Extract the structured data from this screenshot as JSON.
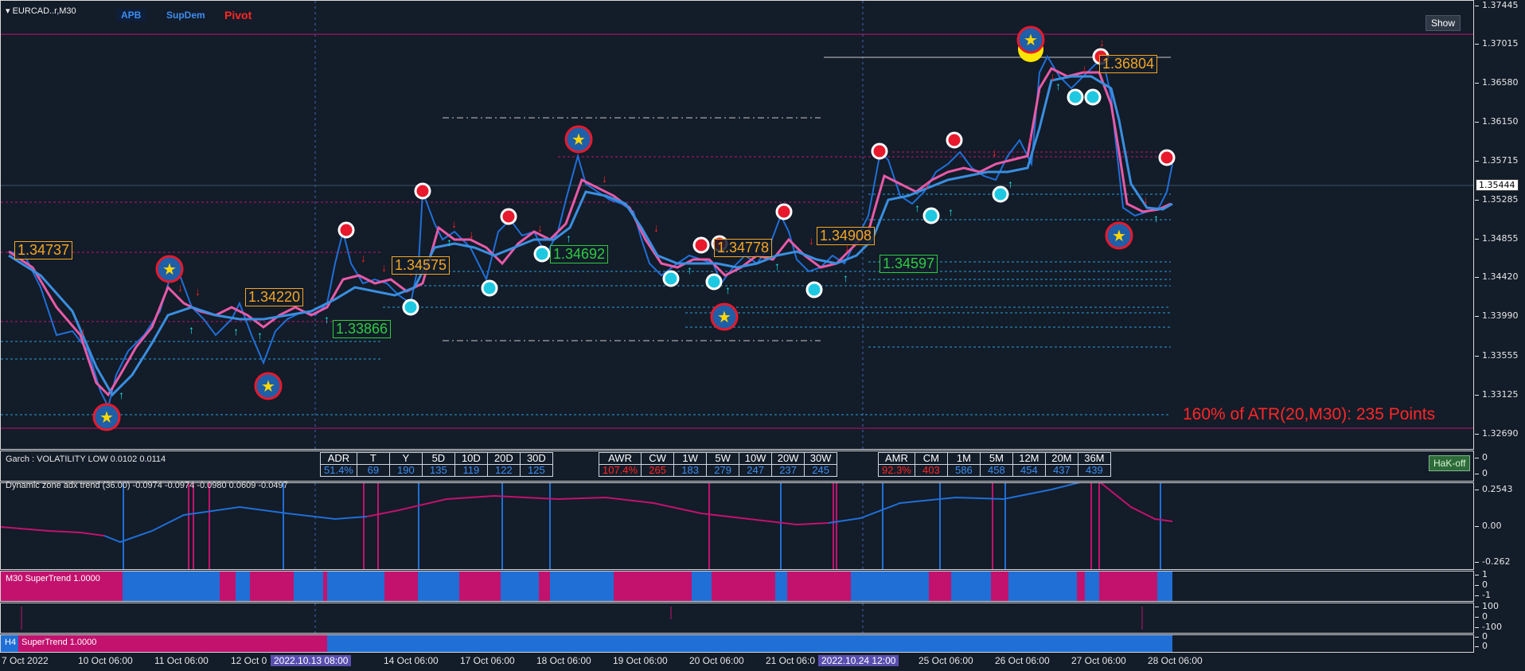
{
  "window": {
    "title": "EURCAD..r,M30"
  },
  "toolbar": {
    "apb": "APB",
    "supdem": "SupDem",
    "pivot": "Pivot",
    "show": "Show"
  },
  "main_axis": [
    "1.37445",
    "1.37015",
    "1.36580",
    "1.36150",
    "1.35715",
    "1.35285",
    "1.34855",
    "1.34420",
    "1.33990",
    "1.33555",
    "1.33125",
    "1.32690"
  ],
  "current_price": "1.35444",
  "price_labels": {
    "l1": "1.34737",
    "l2": "1.34220",
    "l3": "1.34575",
    "l4": "1.33866",
    "l5": "1.34692",
    "l6": "1.34778",
    "l7": "1.34908",
    "l8": "1.34597",
    "l9": "1.36804"
  },
  "atr_text": "160% of ATR(20,M30): 235  Points",
  "garch": {
    "title": "Garch : VOLATILITY LOW 0.0102 0.0114",
    "hak_button": "HaK-off",
    "axis": [
      "0",
      "0"
    ],
    "t1": {
      "headers": [
        "ADR",
        "T",
        "Y",
        "5D",
        "10D",
        "20D",
        "30D"
      ],
      "values": [
        "51.4%",
        "69",
        "190",
        "135",
        "119",
        "122",
        "125"
      ]
    },
    "t2": {
      "headers": [
        "AWR",
        "CW",
        "1W",
        "5W",
        "10W",
        "20W",
        "30W"
      ],
      "values": [
        "107.4%",
        "265",
        "183",
        "279",
        "247",
        "237",
        "245"
      ]
    },
    "t3": {
      "headers": [
        "AMR",
        "CM",
        "1M",
        "5M",
        "12M",
        "20M",
        "36M"
      ],
      "values": [
        "92.3%",
        "403",
        "586",
        "458",
        "454",
        "437",
        "439"
      ]
    }
  },
  "adx": {
    "title": "Dynamic zone adx trend (36.00) -0.0974 -0.0974 -0.0980 0.0609 -0.0497",
    "axis": [
      "0.2543",
      "0.00",
      "-0.262"
    ]
  },
  "m30st": {
    "title": "M30 SuperTrend 1.0000",
    "axis": [
      "1",
      "0",
      "-1"
    ]
  },
  "sub4": {
    "axis": [
      "100",
      "0",
      "-100"
    ]
  },
  "h4st": {
    "prefix": "H4",
    "title": "SuperTrend 1.0000",
    "axis": [
      "0",
      "0"
    ]
  },
  "x_axis": [
    "7 Oct 2022",
    "10 Oct 06:00",
    "11 Oct 06:00",
    "12 Oct 0",
    "14 Oct 06:00",
    "17 Oct 06:00",
    "18 Oct 06:00",
    "19 Oct 06:00",
    "20 Oct 06:00",
    "21 Oct 06:0",
    "25 Oct 06:00",
    "26 Oct 06:00",
    "27 Oct 06:00",
    "28 Oct 06:00"
  ],
  "x_selected": [
    "2022.10.13 08:00",
    "2022.10.24 12:00"
  ],
  "colors": {
    "bull": "#1f6fd6",
    "bear": "#c2126e",
    "background": "#131c29",
    "label_orange": "#f5a623",
    "label_green": "#2ecc40"
  }
}
